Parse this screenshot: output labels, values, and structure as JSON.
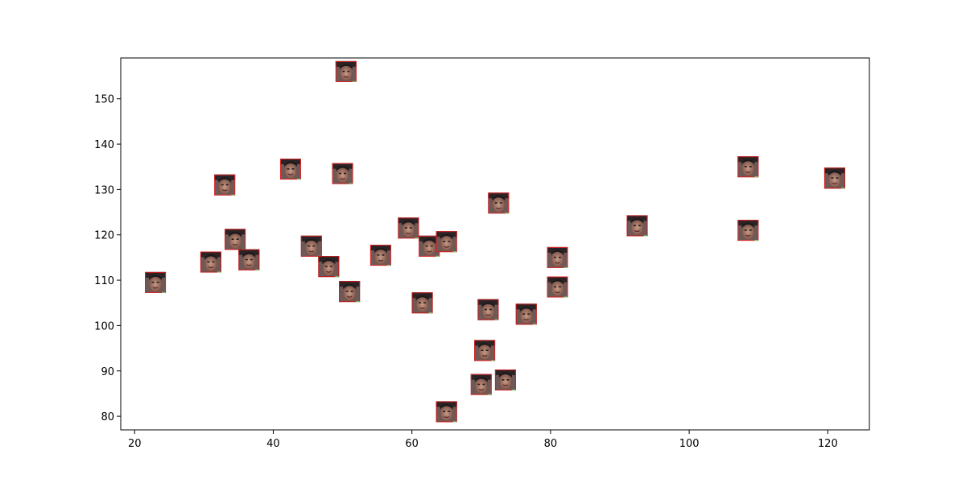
{
  "chart_data": {
    "type": "scatter",
    "title": "",
    "xlabel": "",
    "ylabel": "",
    "xlim": [
      18,
      126
    ],
    "ylim": [
      77,
      159
    ],
    "grid": false,
    "legend": "none",
    "marker": "face-thumbnail-icon",
    "x_ticks": [
      "20",
      "40",
      "60",
      "80",
      "100",
      "120"
    ],
    "y_ticks": [
      "80",
      "90",
      "100",
      "110",
      "120",
      "130",
      "140",
      "150"
    ],
    "points": [
      {
        "x": 23,
        "y": 109.5
      },
      {
        "x": 31,
        "y": 114
      },
      {
        "x": 33,
        "y": 131
      },
      {
        "x": 34.5,
        "y": 119
      },
      {
        "x": 36.5,
        "y": 114.5
      },
      {
        "x": 42.5,
        "y": 134.5
      },
      {
        "x": 45.5,
        "y": 117.5
      },
      {
        "x": 48,
        "y": 113
      },
      {
        "x": 50,
        "y": 133.5
      },
      {
        "x": 50.5,
        "y": 156
      },
      {
        "x": 51,
        "y": 107.5
      },
      {
        "x": 55.5,
        "y": 115.5
      },
      {
        "x": 59.5,
        "y": 121.5
      },
      {
        "x": 61.5,
        "y": 105
      },
      {
        "x": 62.5,
        "y": 117.5
      },
      {
        "x": 65,
        "y": 118.5
      },
      {
        "x": 65,
        "y": 81
      },
      {
        "x": 70,
        "y": 87
      },
      {
        "x": 70.5,
        "y": 94.5
      },
      {
        "x": 71,
        "y": 103.5
      },
      {
        "x": 72.5,
        "y": 127
      },
      {
        "x": 73.5,
        "y": 88
      },
      {
        "x": 76.5,
        "y": 102.5
      },
      {
        "x": 81,
        "y": 115
      },
      {
        "x": 81,
        "y": 108.5
      },
      {
        "x": 92.5,
        "y": 122
      },
      {
        "x": 108.5,
        "y": 121
      },
      {
        "x": 108.5,
        "y": 135
      },
      {
        "x": 121,
        "y": 132.5
      }
    ]
  }
}
